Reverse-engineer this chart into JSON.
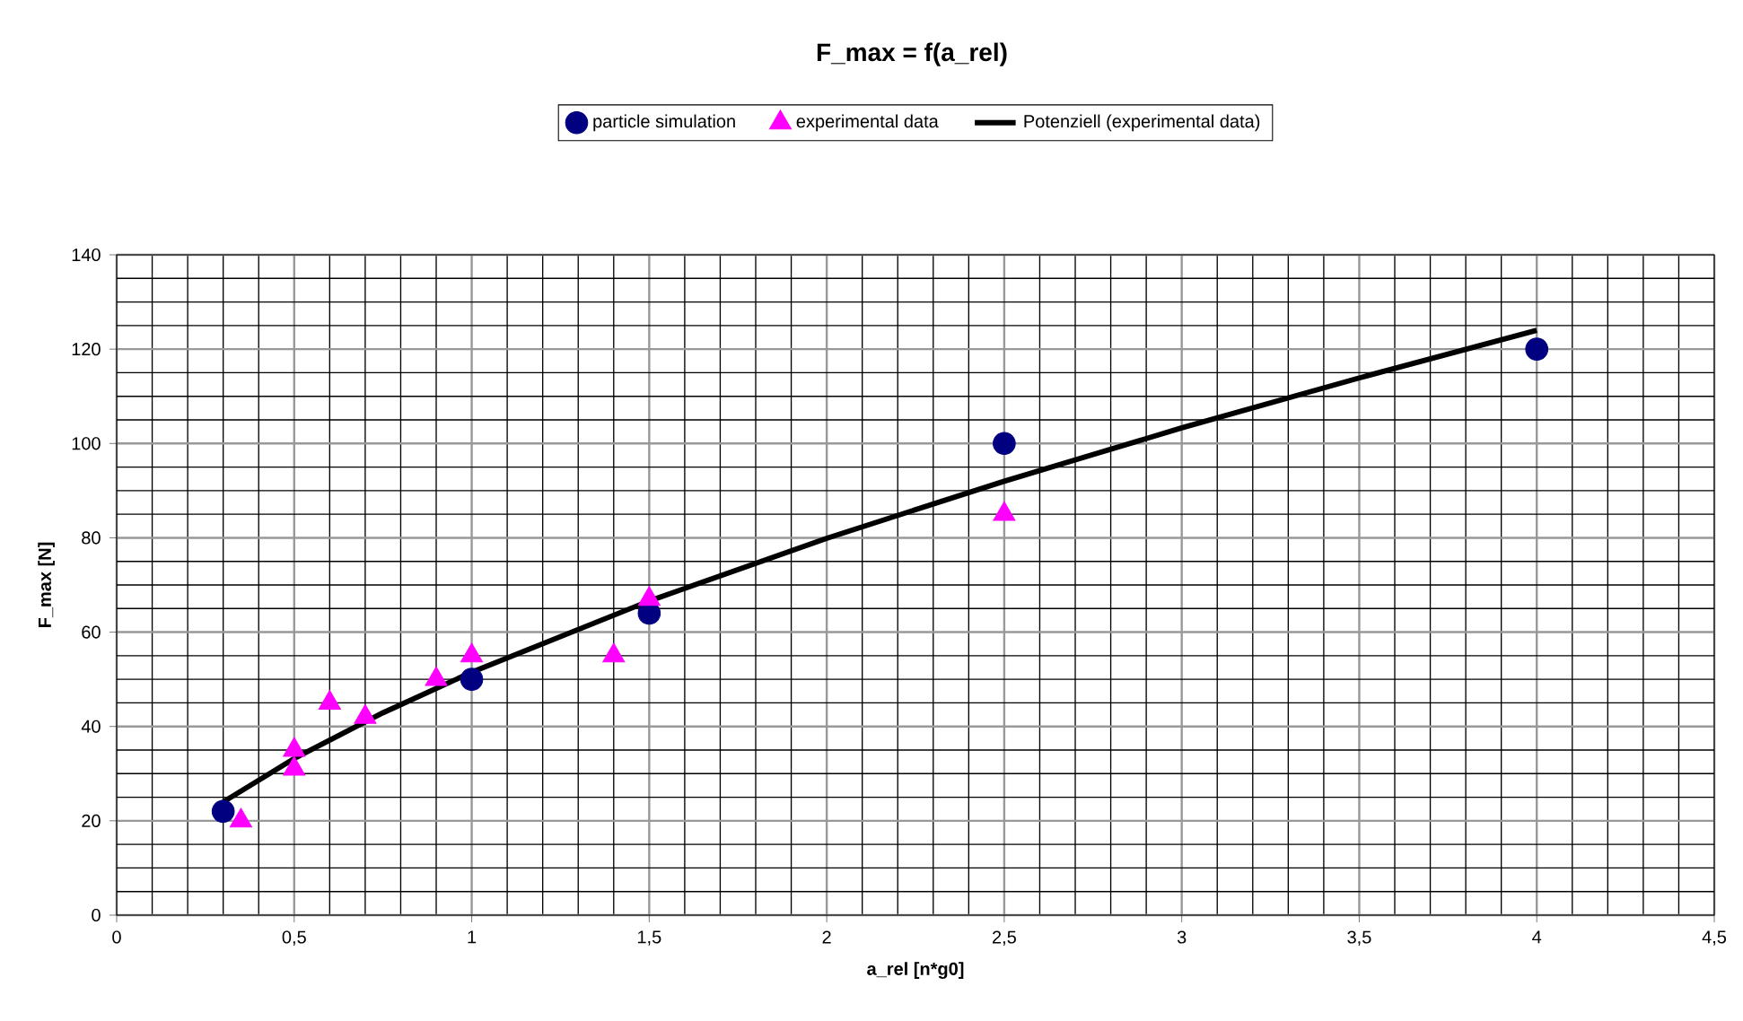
{
  "chart_data": {
    "type": "scatter",
    "title": "F_max = f(a_rel)",
    "xlabel": "a_rel [n*g0]",
    "ylabel": "F_max [N]",
    "xlim": [
      0,
      4.5
    ],
    "ylim": [
      0,
      140
    ],
    "xticks": [
      0,
      {
        "value": 0.5,
        "label": "0,5"
      },
      1,
      {
        "value": 1.5,
        "label": "1,5"
      },
      2,
      {
        "value": 2.5,
        "label": "2,5"
      },
      3,
      {
        "value": 3.5,
        "label": "3,5"
      },
      4,
      {
        "value": 4.5,
        "label": "4,5"
      }
    ],
    "yticks": [
      0,
      20,
      40,
      60,
      80,
      100,
      120,
      140
    ],
    "grid": true,
    "legend": "top",
    "series": [
      {
        "name": "particle simulation",
        "color": "#000080",
        "marker": "circle",
        "x": [
          0.3,
          1,
          1.5,
          2.5,
          4
        ],
        "values": [
          22,
          50,
          64,
          100,
          120
        ]
      },
      {
        "name": "experimental data",
        "color": "#ff00ff",
        "marker": "triangle",
        "x": [
          0.35,
          0.5,
          0.5,
          0.6,
          0.7,
          0.9,
          1,
          1.4,
          1.5,
          2.5
        ],
        "values": [
          20,
          35,
          31,
          45,
          42,
          50,
          55,
          55,
          67,
          85
        ]
      },
      {
        "name": "Potenziell (experimental data)",
        "type": "line",
        "color": "#000000",
        "marker": "none",
        "line_style": "solid",
        "x": [
          0.3,
          0.5,
          0.75,
          1,
          1.5,
          2,
          2.5,
          3,
          3.5,
          4
        ],
        "values": [
          24,
          33.2,
          42.9,
          51.5,
          66.6,
          79.9,
          92,
          103.3,
          113.9,
          124
        ]
      }
    ]
  }
}
